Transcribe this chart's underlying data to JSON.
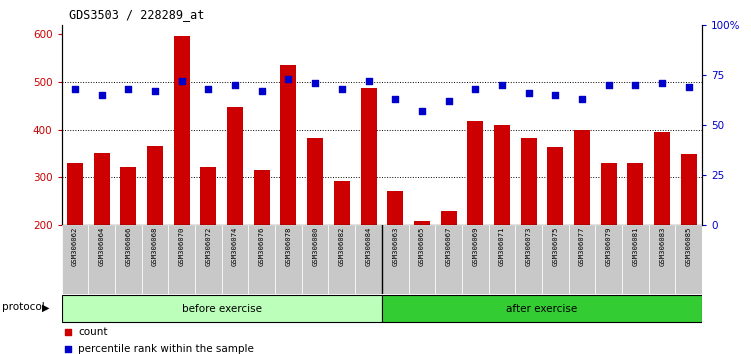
{
  "title": "GDS3503 / 228289_at",
  "samples": [
    "GSM306062",
    "GSM306064",
    "GSM306066",
    "GSM306068",
    "GSM306070",
    "GSM306072",
    "GSM306074",
    "GSM306076",
    "GSM306078",
    "GSM306080",
    "GSM306082",
    "GSM306084",
    "GSM306063",
    "GSM306065",
    "GSM306067",
    "GSM306069",
    "GSM306071",
    "GSM306073",
    "GSM306075",
    "GSM306077",
    "GSM306079",
    "GSM306081",
    "GSM306083",
    "GSM306085"
  ],
  "counts": [
    330,
    350,
    322,
    365,
    597,
    322,
    447,
    315,
    535,
    383,
    292,
    487,
    272,
    208,
    228,
    418,
    410,
    383,
    363,
    398,
    330,
    330,
    395,
    348
  ],
  "percentile": [
    68,
    65,
    68,
    67,
    72,
    68,
    70,
    67,
    73,
    71,
    68,
    72,
    63,
    57,
    62,
    68,
    70,
    66,
    65,
    63,
    70,
    70,
    71,
    69
  ],
  "before_count": 12,
  "after_count": 12,
  "bar_color": "#cc0000",
  "dot_color": "#0000cc",
  "ylim_left": [
    200,
    620
  ],
  "ylim_right": [
    0,
    100
  ],
  "yticks_left": [
    200,
    300,
    400,
    500,
    600
  ],
  "yticks_right": [
    0,
    25,
    50,
    75,
    100
  ],
  "grid_values": [
    300,
    400,
    500
  ],
  "before_color": "#bbffbb",
  "after_color": "#33cc33",
  "protocol_label": "protocol",
  "before_label": "before exercise",
  "after_label": "after exercise",
  "legend_count": "count",
  "legend_pct": "percentile rank within the sample",
  "bg_color": "#c8c8c8"
}
